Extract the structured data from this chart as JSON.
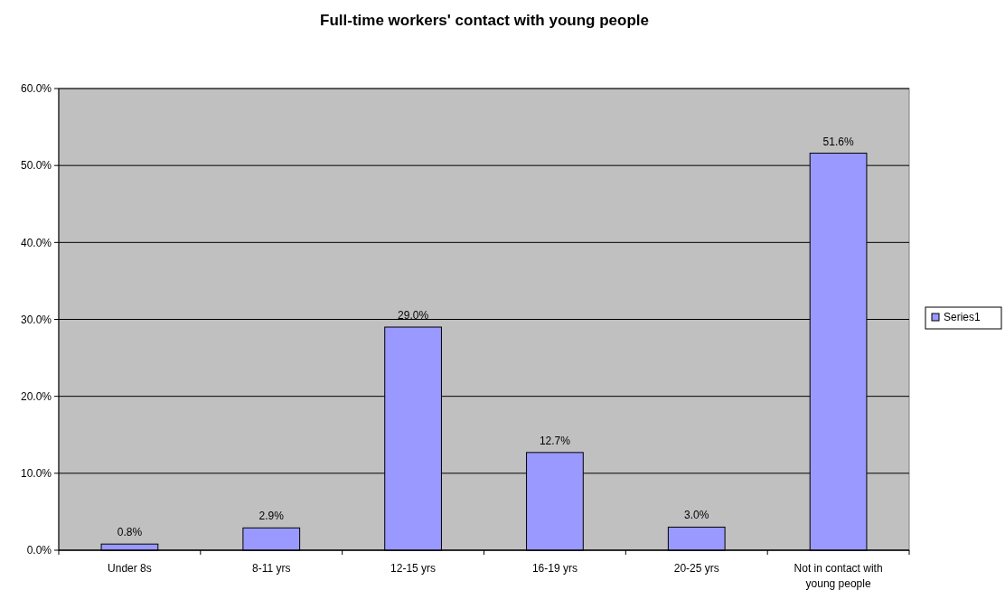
{
  "chart_data": {
    "type": "bar",
    "title": "Full-time workers' contact with young people",
    "categories": [
      "Under 8s",
      "8-11 yrs",
      "12-15 yrs",
      "16-19 yrs",
      "20-25 yrs",
      "Not in contact with young people"
    ],
    "series": [
      {
        "name": "Series1",
        "color": "#9999ff",
        "values": [
          0.8,
          2.9,
          29.0,
          12.7,
          3.0,
          51.6
        ],
        "value_labels": [
          "0.8%",
          "2.9%",
          "29.0%",
          "12.7%",
          "3.0%",
          "51.6%"
        ]
      }
    ],
    "ylim": [
      0,
      60
    ],
    "yticks": [
      {
        "value": 0,
        "label": "0.0%"
      },
      {
        "value": 10,
        "label": "10.0%"
      },
      {
        "value": 20,
        "label": "20.0%"
      },
      {
        "value": 30,
        "label": "30.0%"
      },
      {
        "value": 40,
        "label": "40.0%"
      },
      {
        "value": 50,
        "label": "50.0%"
      },
      {
        "value": 60,
        "label": "60.0%"
      }
    ],
    "grid": "y",
    "legend": "right"
  }
}
